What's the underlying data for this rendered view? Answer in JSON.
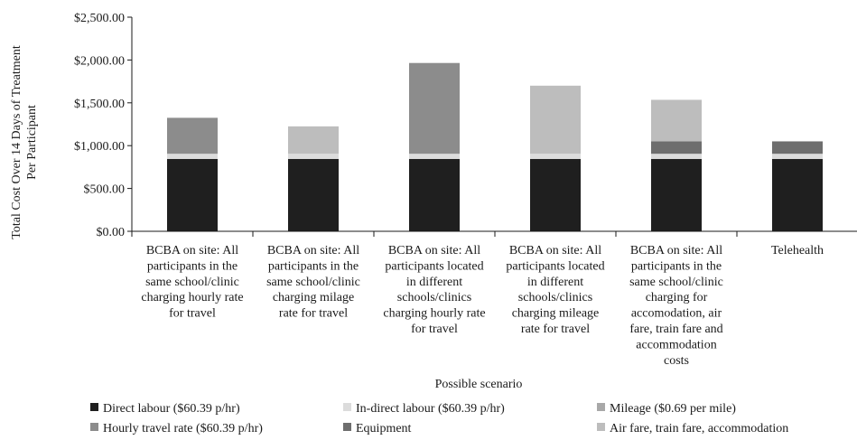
{
  "chart_data": {
    "type": "bar",
    "stacked": true,
    "xlabel": "Possible scenario",
    "ylabel": "Total Cost Over 14 Days of Treatment Per Participant",
    "ylabel_lines": [
      "Total Cost Over 14 Days of Treatment",
      "Per Participant"
    ],
    "ylim": [
      0,
      2500
    ],
    "yticks": [
      0,
      500,
      1000,
      1500,
      2000,
      2500
    ],
    "ytick_labels": [
      "$0.00",
      "$500.00",
      "$1,000.00",
      "$1,500.00",
      "$2,000.00",
      "$2,500.00"
    ],
    "grid": false,
    "legend_position": "bottom",
    "categories": [
      "BCBA on site: All participants in the same school/clinic charging hourly rate for travel",
      "BCBA on site: All participants in the same school/clinic charging milage rate for travel",
      "BCBA on site: All participants located in different schools/clinics charging hourly rate for travel",
      "BCBA on site: All participants located in different schools/clinics charging mileage rate for travel",
      "BCBA on site: All participants in the same school/clinic charging for accomodation, air fare, train fare and accommodation costs",
      "Telehealth"
    ],
    "category_lines": [
      [
        "BCBA on site: All",
        "participants in the",
        "same school/clinic",
        "charging hourly rate",
        "for travel"
      ],
      [
        "BCBA on site: All",
        "participants in the",
        "same school/clinic",
        "charging milage",
        "rate for travel"
      ],
      [
        "BCBA on site: All",
        "participants located",
        "in different",
        "schools/clinics",
        "charging hourly rate",
        "for travel"
      ],
      [
        "BCBA on site: All",
        "participants located",
        "in different",
        "schools/clinics",
        "charging mileage",
        "rate for travel"
      ],
      [
        "BCBA on site: All",
        "participants in the",
        "same school/clinic",
        "charging for",
        "accomodation, air",
        "fare, train fare and",
        "accommodation",
        "costs"
      ],
      [
        "Telehealth"
      ]
    ],
    "series": [
      {
        "name": "Direct labour ($60.39 p/hr)",
        "color": "#1f1f1f",
        "values": [
          845,
          845,
          845,
          845,
          845,
          845
        ]
      },
      {
        "name": "In-direct labour ($60.39 p/hr)",
        "color": "#dcdcdc",
        "values": [
          60,
          60,
          60,
          60,
          60,
          60
        ]
      },
      {
        "name": "Mileage ($0.69 per mile)",
        "color": "#a8a8a8",
        "values": [
          0,
          0,
          0,
          0,
          0,
          0
        ]
      },
      {
        "name": "Hourly travel rate ($60.39 p/hr)",
        "color": "#8c8c8c",
        "values": [
          420,
          0,
          1060,
          0,
          0,
          0
        ]
      },
      {
        "name": "Equipment",
        "color": "#6e6e6e",
        "values": [
          0,
          0,
          0,
          0,
          145,
          145
        ]
      },
      {
        "name": "Air fare, train fare, accommodation",
        "color": "#bdbdbd",
        "values": [
          0,
          320,
          0,
          795,
          485,
          0
        ]
      }
    ]
  }
}
